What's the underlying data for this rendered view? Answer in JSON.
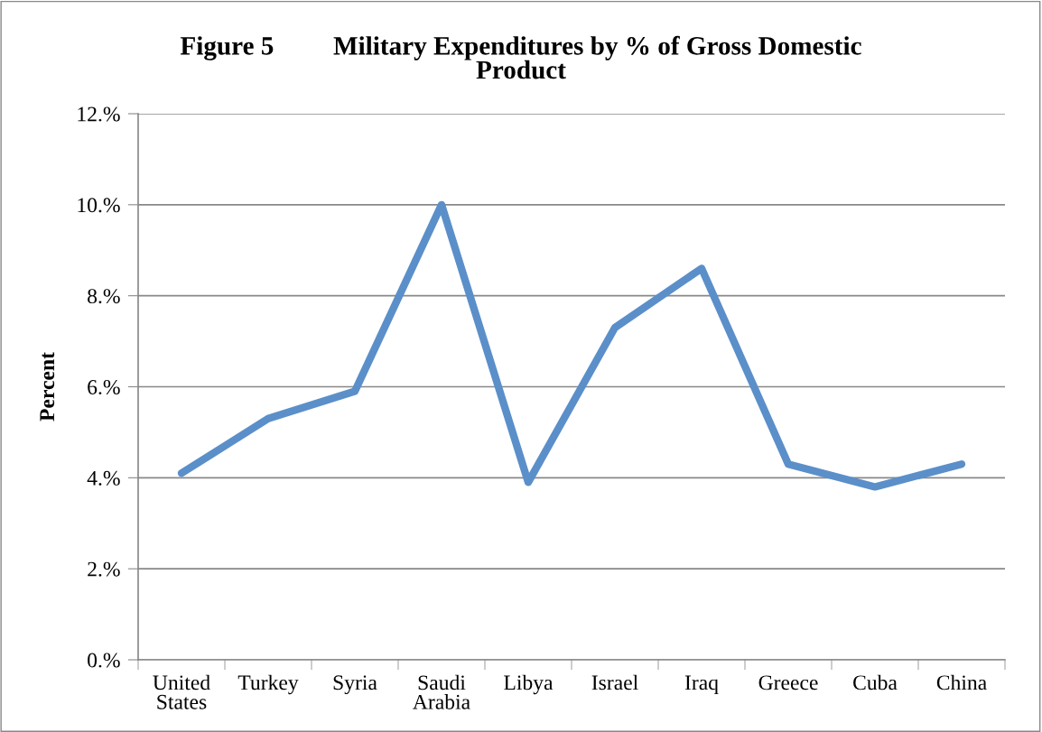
{
  "chart_data": {
    "type": "line",
    "title": "Figure 5         Military Expenditures by % of Gross Domestic\nProduct",
    "ylabel": "Percent",
    "categories": [
      "United\nStates",
      "Turkey",
      "Syria",
      "Saudi\nArabia",
      "Libya",
      "Israel",
      "Iraq",
      "Greece",
      "Cuba",
      "China"
    ],
    "series": [
      {
        "color": "#5b8fc9",
        "values": [
          4.1,
          5.3,
          5.9,
          10.0,
          3.9,
          7.3,
          8.6,
          4.3,
          3.8,
          4.3
        ]
      }
    ],
    "ylim": [
      0,
      12
    ],
    "yticks": [
      {
        "value": 0,
        "label": "0.%"
      },
      {
        "value": 2,
        "label": "2.%"
      },
      {
        "value": 4,
        "label": "4.%"
      },
      {
        "value": 6,
        "label": "6.%"
      },
      {
        "value": 8,
        "label": "8.%"
      },
      {
        "value": 10,
        "label": "10.%"
      },
      {
        "value": 12,
        "label": "12.%"
      }
    ],
    "grid": "y",
    "legend": false,
    "marker": "none",
    "line_style": "solid"
  }
}
